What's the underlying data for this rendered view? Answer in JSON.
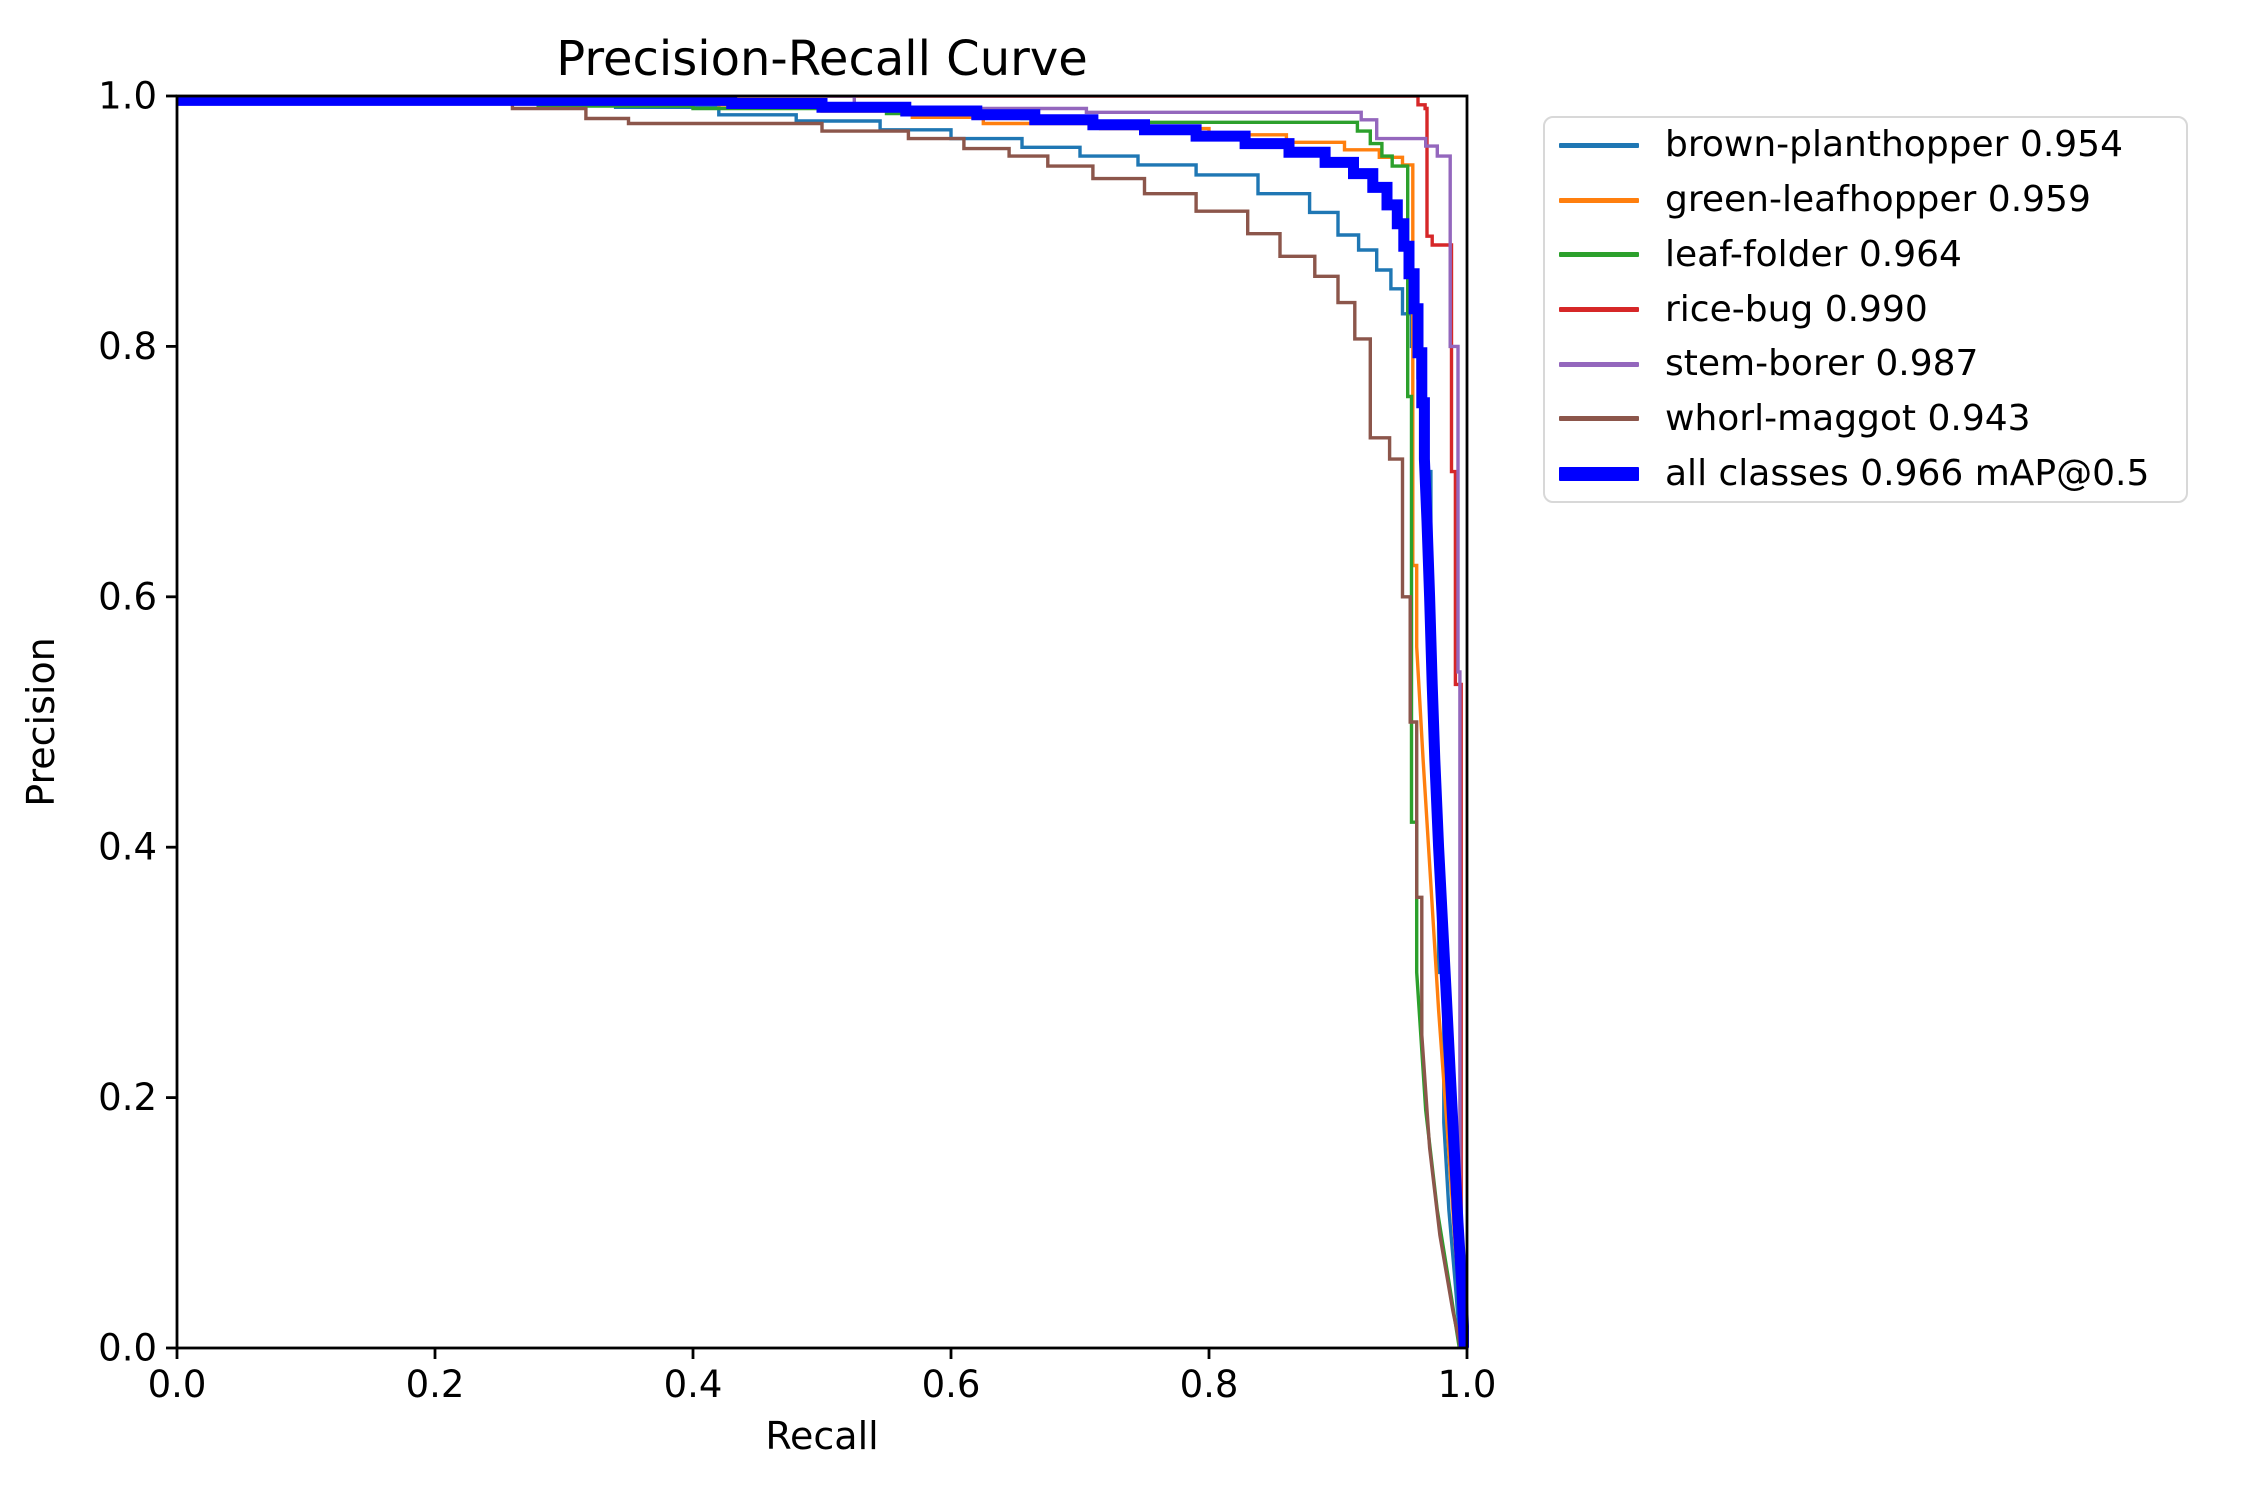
{
  "chart_data": {
    "type": "line",
    "title": "Precision-Recall Curve",
    "xlabel": "Recall",
    "ylabel": "Precision",
    "xlim": [
      0.0,
      1.0
    ],
    "ylim": [
      0.0,
      1.0
    ],
    "xticks": [
      0.0,
      0.2,
      0.4,
      0.6,
      0.8,
      1.0
    ],
    "xtick_labels": [
      "0.0",
      "0.2",
      "0.4",
      "0.6",
      "0.8",
      "1.0"
    ],
    "yticks": [
      0.0,
      0.2,
      0.4,
      0.6,
      0.8,
      1.0
    ],
    "ytick_labels": [
      "0.0",
      "0.2",
      "0.4",
      "0.6",
      "0.8",
      "1.0"
    ],
    "grid": false,
    "legend_position": "upper right, outside axes",
    "spine_color": "#000000",
    "legend_border_color": "#d8d8d8",
    "series": [
      {
        "name": "brown-planthopper",
        "ap": 0.954,
        "label": "brown-planthopper 0.954",
        "color": "#1f77b4",
        "linewidth": 3.4,
        "points": [
          [
            0,
            1
          ],
          [
            0.34,
            1
          ],
          [
            0.34,
            0.991
          ],
          [
            0.42,
            0.991
          ],
          [
            0.42,
            0.985
          ],
          [
            0.48,
            0.985
          ],
          [
            0.48,
            0.98
          ],
          [
            0.545,
            0.98
          ],
          [
            0.545,
            0.973
          ],
          [
            0.6,
            0.973
          ],
          [
            0.6,
            0.966
          ],
          [
            0.655,
            0.966
          ],
          [
            0.655,
            0.959
          ],
          [
            0.7,
            0.959
          ],
          [
            0.7,
            0.952
          ],
          [
            0.745,
            0.952
          ],
          [
            0.745,
            0.945
          ],
          [
            0.79,
            0.945
          ],
          [
            0.79,
            0.937
          ],
          [
            0.838,
            0.937
          ],
          [
            0.838,
            0.922
          ],
          [
            0.878,
            0.922
          ],
          [
            0.878,
            0.907
          ],
          [
            0.9,
            0.907
          ],
          [
            0.9,
            0.889
          ],
          [
            0.916,
            0.889
          ],
          [
            0.916,
            0.877
          ],
          [
            0.93,
            0.877
          ],
          [
            0.93,
            0.861
          ],
          [
            0.941,
            0.861
          ],
          [
            0.941,
            0.846
          ],
          [
            0.95,
            0.846
          ],
          [
            0.95,
            0.826
          ],
          [
            0.957,
            0.826
          ],
          [
            0.957,
            0.8
          ],
          [
            0.962,
            0.8
          ],
          [
            0.962,
            0.775
          ],
          [
            0.966,
            0.775
          ],
          [
            0.966,
            0.74
          ],
          [
            0.969,
            0.74
          ],
          [
            0.969,
            0.7
          ],
          [
            0.972,
            0.7
          ],
          [
            0.972,
            0.55
          ],
          [
            0.975,
            0.55
          ],
          [
            0.975,
            0.42
          ],
          [
            0.978,
            0.42
          ],
          [
            0.978,
            0.3
          ],
          [
            0.982,
            0.3
          ],
          [
            0.982,
            0.18
          ],
          [
            0.986,
            0.11
          ],
          [
            0.991,
            0.05
          ],
          [
            0.995,
            0
          ]
        ]
      },
      {
        "name": "green-leafhopper",
        "ap": 0.959,
        "label": "green-leafhopper 0.959",
        "color": "#ff7f0e",
        "linewidth": 3.4,
        "points": [
          [
            0,
            1
          ],
          [
            0.42,
            1
          ],
          [
            0.42,
            0.993
          ],
          [
            0.5,
            0.993
          ],
          [
            0.5,
            0.988
          ],
          [
            0.57,
            0.988
          ],
          [
            0.57,
            0.983
          ],
          [
            0.625,
            0.983
          ],
          [
            0.625,
            0.978
          ],
          [
            0.716,
            0.978
          ],
          [
            0.716,
            0.974
          ],
          [
            0.8,
            0.974
          ],
          [
            0.8,
            0.969
          ],
          [
            0.86,
            0.969
          ],
          [
            0.86,
            0.963
          ],
          [
            0.905,
            0.963
          ],
          [
            0.905,
            0.957
          ],
          [
            0.932,
            0.957
          ],
          [
            0.932,
            0.951
          ],
          [
            0.95,
            0.951
          ],
          [
            0.95,
            0.945
          ],
          [
            0.958,
            0.945
          ],
          [
            0.958,
            0.625
          ],
          [
            0.961,
            0.625
          ],
          [
            0.961,
            0.56
          ],
          [
            0.966,
            0.47
          ],
          [
            0.972,
            0.37
          ],
          [
            0.978,
            0.27
          ],
          [
            0.985,
            0.17
          ],
          [
            0.991,
            0.08
          ],
          [
            0.996,
            0.02
          ],
          [
            0.996,
            0
          ]
        ]
      },
      {
        "name": "leaf-folder",
        "ap": 0.964,
        "label": "leaf-folder 0.964",
        "color": "#2ca02c",
        "linewidth": 3.4,
        "points": [
          [
            0,
            1
          ],
          [
            0.28,
            1
          ],
          [
            0.28,
            0.992
          ],
          [
            0.4,
            0.992
          ],
          [
            0.4,
            0.99
          ],
          [
            0.55,
            0.99
          ],
          [
            0.55,
            0.986
          ],
          [
            0.655,
            0.986
          ],
          [
            0.655,
            0.982
          ],
          [
            0.7,
            0.982
          ],
          [
            0.7,
            0.979
          ],
          [
            0.915,
            0.979
          ],
          [
            0.915,
            0.972
          ],
          [
            0.925,
            0.972
          ],
          [
            0.925,
            0.962
          ],
          [
            0.934,
            0.962
          ],
          [
            0.934,
            0.952
          ],
          [
            0.942,
            0.952
          ],
          [
            0.942,
            0.944
          ],
          [
            0.954,
            0.944
          ],
          [
            0.954,
            0.76
          ],
          [
            0.957,
            0.76
          ],
          [
            0.957,
            0.42
          ],
          [
            0.961,
            0.42
          ],
          [
            0.961,
            0.3
          ],
          [
            0.968,
            0.19
          ],
          [
            0.977,
            0.11
          ],
          [
            0.988,
            0.04
          ],
          [
            0.994,
            0
          ]
        ]
      },
      {
        "name": "rice-bug",
        "ap": 0.99,
        "label": "rice-bug 0.990",
        "color": "#d62728",
        "linewidth": 3.4,
        "points": [
          [
            0,
            1
          ],
          [
            0.962,
            1
          ],
          [
            0.962,
            0.993
          ],
          [
            0.9675,
            0.993
          ],
          [
            0.9675,
            0.99
          ],
          [
            0.969,
            0.99
          ],
          [
            0.969,
            0.888
          ],
          [
            0.973,
            0.888
          ],
          [
            0.973,
            0.881
          ],
          [
            0.988,
            0.881
          ],
          [
            0.988,
            0.7
          ],
          [
            0.991,
            0.7
          ],
          [
            0.991,
            0.53
          ],
          [
            0.9955,
            0.53
          ],
          [
            0.9955,
            0
          ]
        ]
      },
      {
        "name": "stem-borer",
        "ap": 0.987,
        "label": "stem-borer 0.987",
        "color": "#9467bd",
        "linewidth": 3.4,
        "points": [
          [
            0,
            1
          ],
          [
            0.525,
            1
          ],
          [
            0.525,
            0.99
          ],
          [
            0.705,
            0.99
          ],
          [
            0.705,
            0.987
          ],
          [
            0.918,
            0.987
          ],
          [
            0.918,
            0.981
          ],
          [
            0.93,
            0.981
          ],
          [
            0.93,
            0.966
          ],
          [
            0.968,
            0.966
          ],
          [
            0.968,
            0.96
          ],
          [
            0.977,
            0.96
          ],
          [
            0.977,
            0.952
          ],
          [
            0.987,
            0.952
          ],
          [
            0.987,
            0.8
          ],
          [
            0.993,
            0.8
          ],
          [
            0.993,
            0.54
          ],
          [
            0.9945,
            0.54
          ],
          [
            0.9945,
            0
          ]
        ]
      },
      {
        "name": "whorl-maggot",
        "ap": 0.943,
        "label": "whorl-maggot 0.943",
        "color": "#8c564b",
        "linewidth": 3.4,
        "points": [
          [
            0,
            1
          ],
          [
            0.26,
            1
          ],
          [
            0.26,
            0.99
          ],
          [
            0.317,
            0.99
          ],
          [
            0.317,
            0.982
          ],
          [
            0.35,
            0.982
          ],
          [
            0.35,
            0.978
          ],
          [
            0.5,
            0.978
          ],
          [
            0.5,
            0.972
          ],
          [
            0.567,
            0.972
          ],
          [
            0.567,
            0.966
          ],
          [
            0.61,
            0.966
          ],
          [
            0.61,
            0.958
          ],
          [
            0.645,
            0.958
          ],
          [
            0.645,
            0.952
          ],
          [
            0.675,
            0.952
          ],
          [
            0.675,
            0.944
          ],
          [
            0.71,
            0.944
          ],
          [
            0.71,
            0.934
          ],
          [
            0.75,
            0.934
          ],
          [
            0.75,
            0.922
          ],
          [
            0.79,
            0.922
          ],
          [
            0.79,
            0.908
          ],
          [
            0.83,
            0.908
          ],
          [
            0.83,
            0.89
          ],
          [
            0.855,
            0.89
          ],
          [
            0.855,
            0.872
          ],
          [
            0.882,
            0.872
          ],
          [
            0.882,
            0.856
          ],
          [
            0.9,
            0.856
          ],
          [
            0.9,
            0.835
          ],
          [
            0.913,
            0.835
          ],
          [
            0.913,
            0.806
          ],
          [
            0.925,
            0.806
          ],
          [
            0.925,
            0.727
          ],
          [
            0.94,
            0.727
          ],
          [
            0.94,
            0.71
          ],
          [
            0.95,
            0.71
          ],
          [
            0.95,
            0.6
          ],
          [
            0.956,
            0.6
          ],
          [
            0.956,
            0.5
          ],
          [
            0.961,
            0.5
          ],
          [
            0.961,
            0.36
          ],
          [
            0.965,
            0.36
          ],
          [
            0.965,
            0.25
          ],
          [
            0.971,
            0.16
          ],
          [
            0.979,
            0.09
          ],
          [
            0.989,
            0.03
          ],
          [
            0.995,
            0
          ]
        ]
      },
      {
        "name": "all classes",
        "ap": 0.966,
        "label": "all classes 0.966 mAP@0.5",
        "color": "#0000ff",
        "linewidth": 11,
        "points": [
          [
            0,
            0.9965
          ],
          [
            0.43,
            0.9965
          ],
          [
            0.43,
            0.994
          ],
          [
            0.5,
            0.994
          ],
          [
            0.5,
            0.991
          ],
          [
            0.565,
            0.991
          ],
          [
            0.565,
            0.988
          ],
          [
            0.62,
            0.988
          ],
          [
            0.62,
            0.985
          ],
          [
            0.665,
            0.985
          ],
          [
            0.665,
            0.981
          ],
          [
            0.71,
            0.981
          ],
          [
            0.71,
            0.977
          ],
          [
            0.75,
            0.977
          ],
          [
            0.75,
            0.973
          ],
          [
            0.79,
            0.973
          ],
          [
            0.79,
            0.968
          ],
          [
            0.828,
            0.968
          ],
          [
            0.828,
            0.962
          ],
          [
            0.862,
            0.962
          ],
          [
            0.862,
            0.955
          ],
          [
            0.89,
            0.955
          ],
          [
            0.89,
            0.947
          ],
          [
            0.912,
            0.947
          ],
          [
            0.912,
            0.938
          ],
          [
            0.927,
            0.938
          ],
          [
            0.927,
            0.927
          ],
          [
            0.938,
            0.927
          ],
          [
            0.938,
            0.913
          ],
          [
            0.946,
            0.913
          ],
          [
            0.946,
            0.898
          ],
          [
            0.951,
            0.898
          ],
          [
            0.951,
            0.88
          ],
          [
            0.955,
            0.88
          ],
          [
            0.955,
            0.858
          ],
          [
            0.959,
            0.858
          ],
          [
            0.959,
            0.83
          ],
          [
            0.962,
            0.83
          ],
          [
            0.962,
            0.795
          ],
          [
            0.965,
            0.795
          ],
          [
            0.965,
            0.755
          ],
          [
            0.967,
            0.755
          ],
          [
            0.967,
            0.71
          ],
          [
            0.969,
            0.66
          ],
          [
            0.971,
            0.6
          ],
          [
            0.973,
            0.53
          ],
          [
            0.975,
            0.47
          ],
          [
            0.978,
            0.4
          ],
          [
            0.981,
            0.34
          ],
          [
            0.984,
            0.28
          ],
          [
            0.987,
            0.22
          ],
          [
            0.99,
            0.16
          ],
          [
            0.993,
            0.1
          ],
          [
            0.996,
            0.05
          ],
          [
            0.998,
            0
          ]
        ]
      }
    ]
  }
}
